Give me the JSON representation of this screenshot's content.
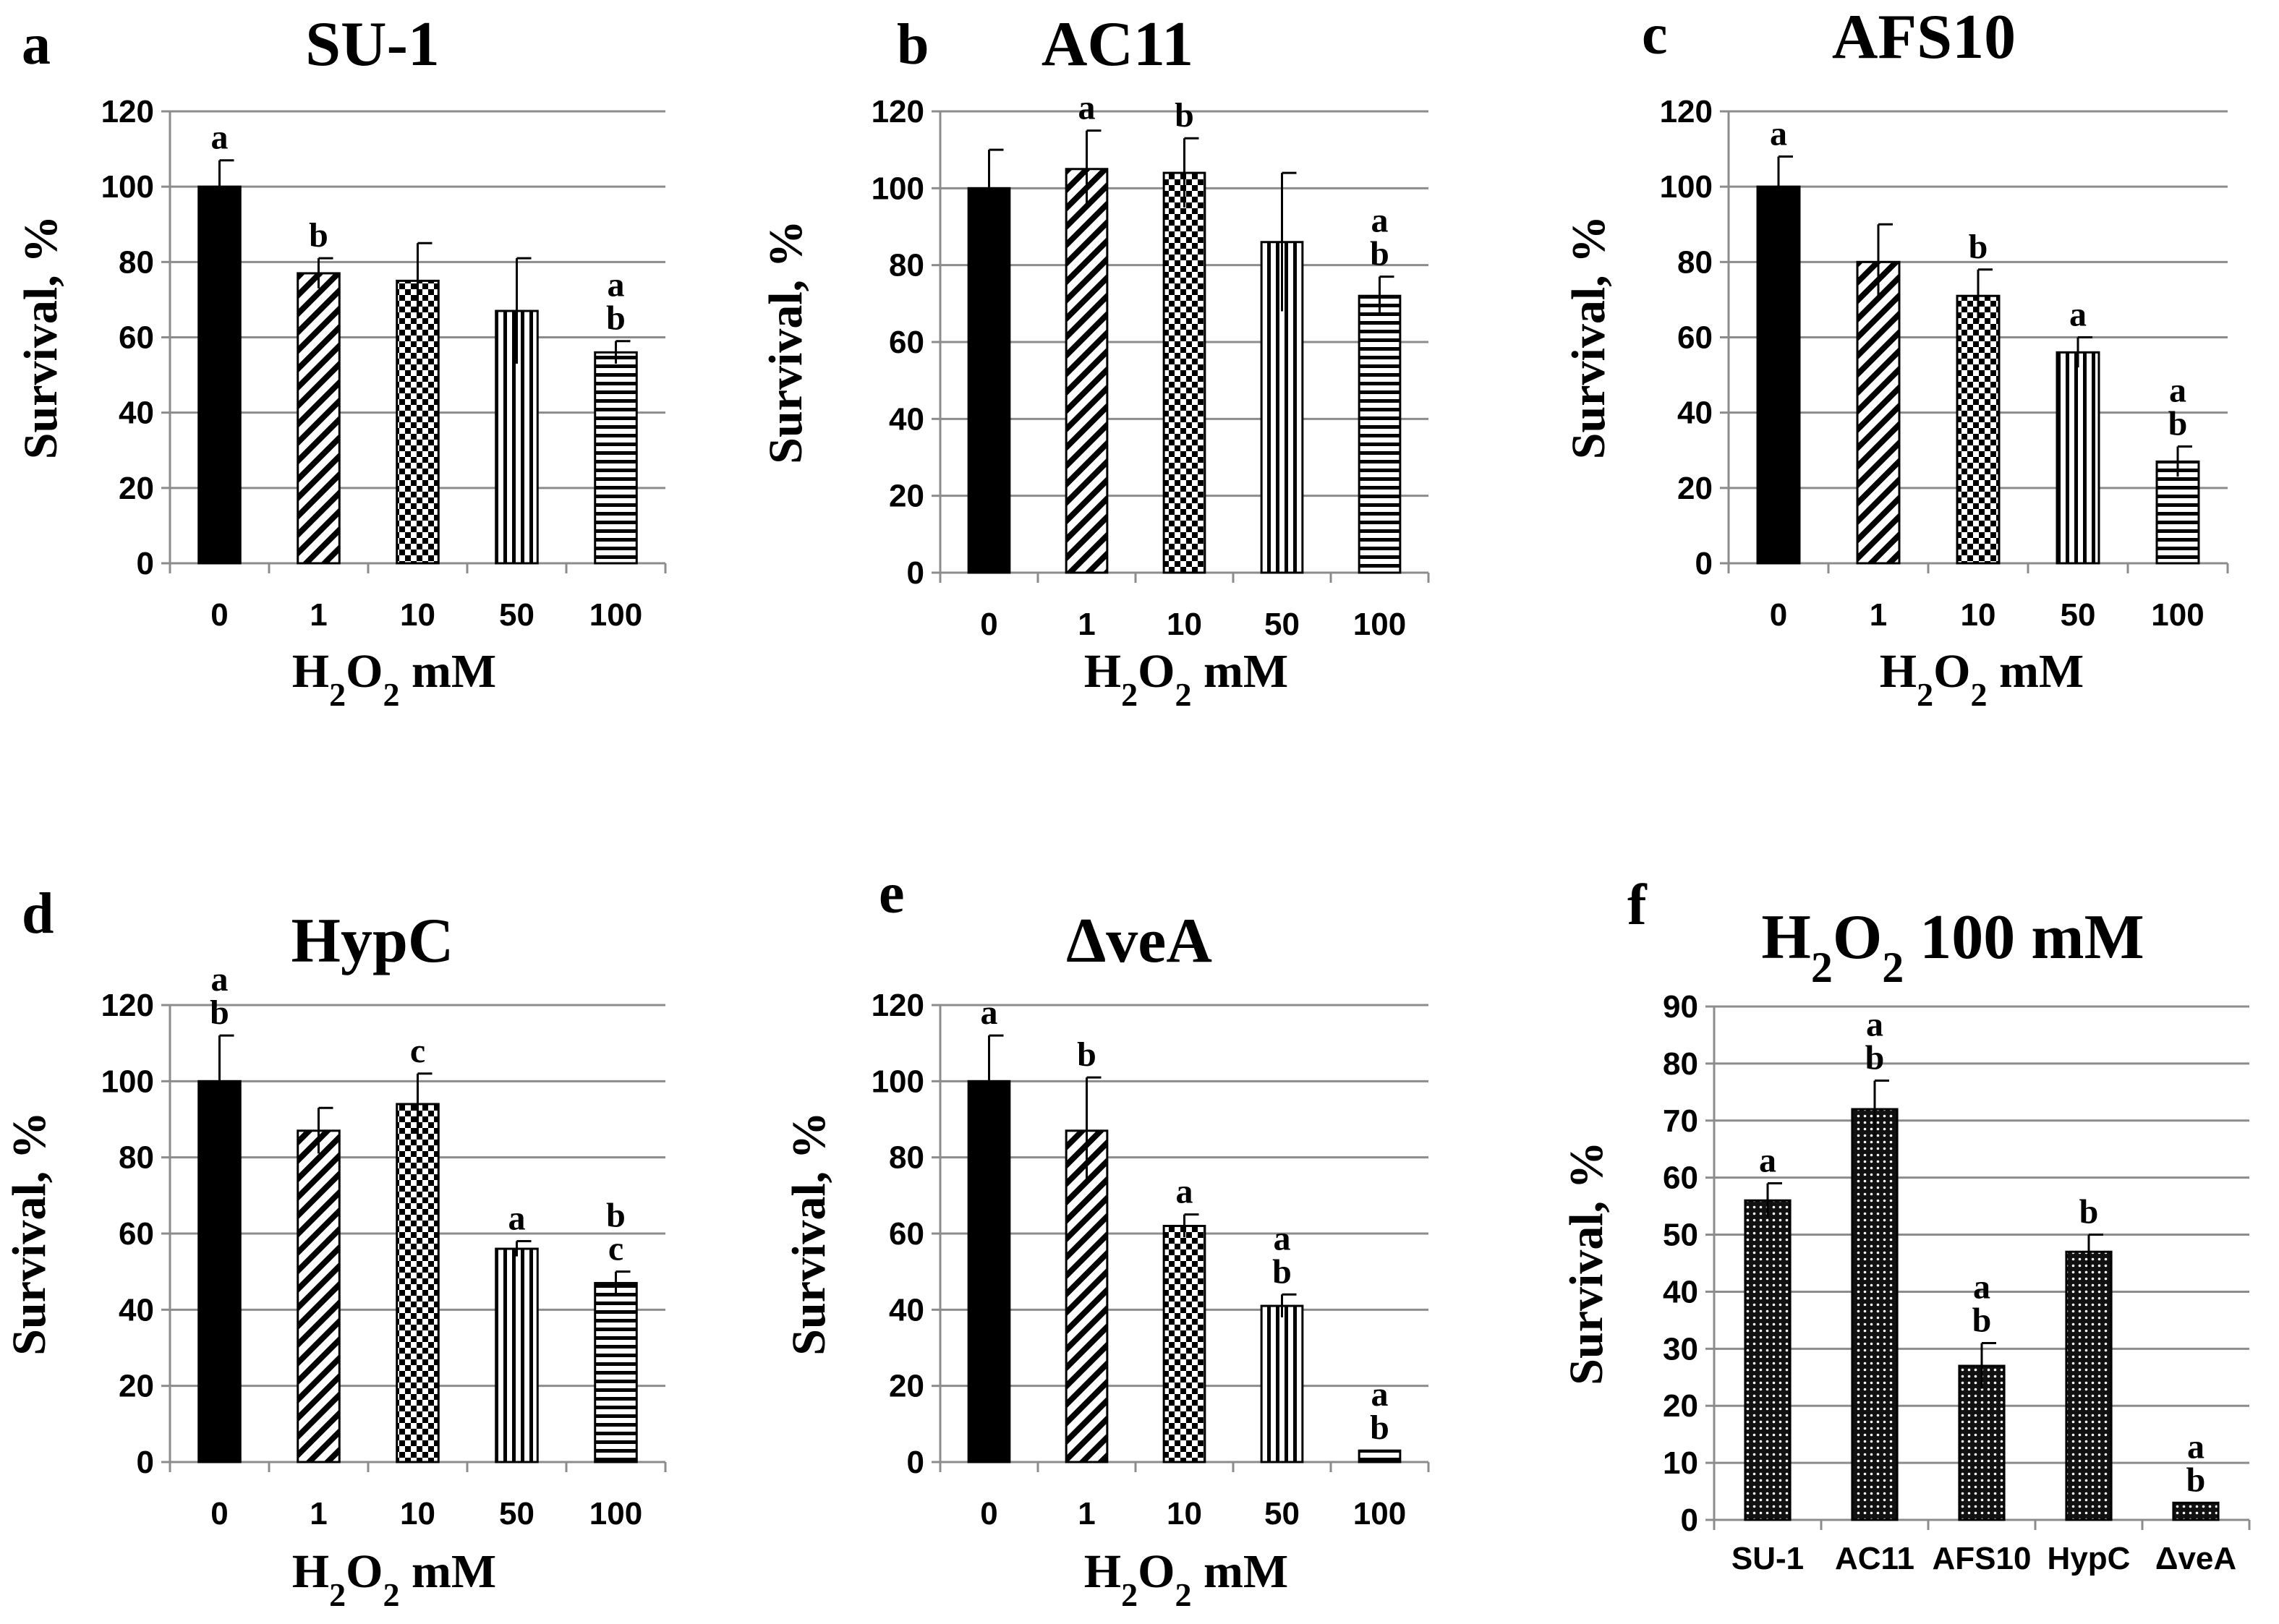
{
  "chart_data": [
    {
      "type": "bar",
      "panel": "a",
      "title": "SU-1",
      "xlabel": "H2O2 mM",
      "ylabel": "Survival, %",
      "categories": [
        "0",
        "1",
        "10",
        "50",
        "100"
      ],
      "values": [
        100,
        77,
        75,
        67,
        56
      ],
      "errors": [
        7,
        4,
        10,
        14,
        3
      ],
      "significance": [
        "a",
        "b",
        "",
        "",
        "a\nb"
      ],
      "ylim": [
        0,
        120
      ],
      "yticks": [
        0,
        20,
        40,
        60,
        80,
        100,
        120
      ],
      "grid": true
    },
    {
      "type": "bar",
      "panel": "b",
      "title": "AC11",
      "xlabel": "H2O2 mM",
      "ylabel": "Survival, %",
      "categories": [
        "0",
        "1",
        "10",
        "50",
        "100"
      ],
      "values": [
        100,
        105,
        104,
        86,
        72
      ],
      "errors": [
        10,
        10,
        9,
        18,
        5
      ],
      "significance": [
        "",
        "a",
        "b",
        "",
        "a\nb"
      ],
      "ylim": [
        0,
        120
      ],
      "yticks": [
        0,
        20,
        40,
        60,
        80,
        100,
        120
      ],
      "grid": true
    },
    {
      "type": "bar",
      "panel": "c",
      "title": "AFS10",
      "xlabel": "H2O2 mM",
      "ylabel": "Survival, %",
      "categories": [
        "0",
        "1",
        "10",
        "50",
        "100"
      ],
      "values": [
        100,
        80,
        71,
        56,
        27
      ],
      "errors": [
        8,
        10,
        7,
        4,
        4
      ],
      "significance": [
        "a",
        "",
        "b",
        "a",
        "a\nb"
      ],
      "ylim": [
        0,
        120
      ],
      "yticks": [
        0,
        20,
        40,
        60,
        80,
        100,
        120
      ],
      "grid": true
    },
    {
      "type": "bar",
      "panel": "d",
      "title": "HypC",
      "xlabel": "H2O2 mM",
      "ylabel": "Survival, %",
      "categories": [
        "0",
        "1",
        "10",
        "50",
        "100"
      ],
      "values": [
        100,
        87,
        94,
        56,
        47
      ],
      "errors": [
        12,
        6,
        8,
        2,
        3
      ],
      "significance": [
        "a\nb",
        "",
        "c",
        "a",
        "b\nc"
      ],
      "ylim": [
        0,
        120
      ],
      "yticks": [
        0,
        20,
        40,
        60,
        80,
        100,
        120
      ],
      "grid": true
    },
    {
      "type": "bar",
      "panel": "e",
      "title": "ΔveA",
      "xlabel": "H2O2 mM",
      "ylabel": "Survival, %",
      "categories": [
        "0",
        "1",
        "10",
        "50",
        "100"
      ],
      "values": [
        100,
        87,
        62,
        41,
        3
      ],
      "errors": [
        12,
        14,
        3,
        3,
        0
      ],
      "significance": [
        "a",
        "b",
        "a",
        "a\nb",
        "a\nb"
      ],
      "ylim": [
        0,
        120
      ],
      "yticks": [
        0,
        20,
        40,
        60,
        80,
        100,
        120
      ],
      "grid": true
    },
    {
      "type": "bar",
      "panel": "f",
      "title": "H2O2 100 mM",
      "xlabel": "",
      "ylabel": "Survival, %",
      "categories": [
        "SU-1",
        "AC11",
        "AFS10",
        "HypC",
        "ΔveA"
      ],
      "values": [
        56,
        72,
        27,
        47,
        3
      ],
      "errors": [
        3,
        5,
        4,
        3,
        0
      ],
      "significance": [
        "a",
        "a\nb",
        "a\nb",
        "b",
        "a\nb"
      ],
      "ylim": [
        0,
        90
      ],
      "yticks": [
        0,
        10,
        20,
        30,
        40,
        50,
        60,
        70,
        80,
        90
      ],
      "grid": true
    }
  ]
}
